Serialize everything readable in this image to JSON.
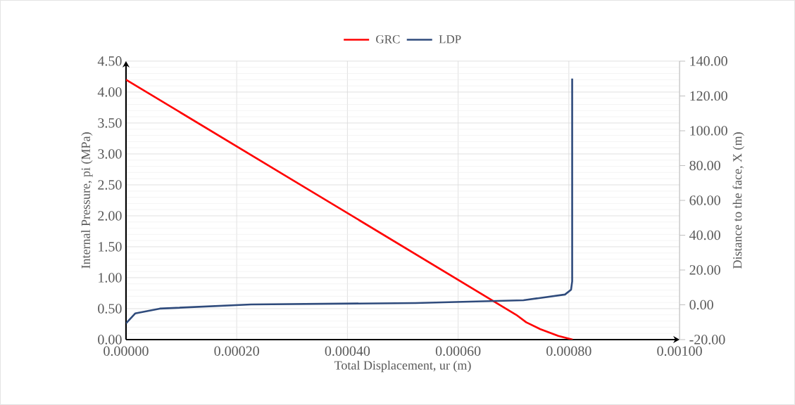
{
  "chart_data": {
    "type": "line",
    "xlabel": "Total Displacement, ur (m)",
    "ylabel": "Internal Pressure, pi (MPa)",
    "y2label": "Distance to the face, X (m)",
    "series": [
      {
        "name": "GRC",
        "color": "#ff0000",
        "x": [
          0,
          0.000705,
          0.000723,
          0.000748,
          0.000781,
          0.000807
        ],
        "values": [
          4.2,
          0.4,
          0.28,
          0.17,
          0.06,
          0
        ]
      },
      {
        "name": "LDP",
        "color": "#2f4b7c",
        "axis": "y2",
        "x": [
          0,
          1.65e-05,
          6.1e-05,
          0.000226,
          0.000523,
          0.000718,
          0.000793,
          0.000804,
          0.000806,
          0.000806
        ],
        "values": [
          -10.7,
          -5.0,
          -2.2,
          0.2,
          1.0,
          2.6,
          5.9,
          8.7,
          13.5,
          130
        ]
      }
    ],
    "xlim": [
      0,
      0.001
    ],
    "xticks": [
      {
        "value": 0,
        "label": "0.00000"
      },
      {
        "value": 0.0002,
        "label": "0.00020"
      },
      {
        "value": 0.0004,
        "label": "0.00040"
      },
      {
        "value": 0.0006,
        "label": "0.00060"
      },
      {
        "value": 0.0008,
        "label": "0.00080"
      },
      {
        "value": 0.001,
        "label": "0.00100"
      }
    ],
    "ylim": [
      0,
      4.5
    ],
    "yticks": [
      {
        "value": 0,
        "label": "0.00"
      },
      {
        "value": 0.5,
        "label": "0.50"
      },
      {
        "value": 1,
        "label": "1.00"
      },
      {
        "value": 1.5,
        "label": "1.50"
      },
      {
        "value": 2,
        "label": "2.00"
      },
      {
        "value": 2.5,
        "label": "2.50"
      },
      {
        "value": 3,
        "label": "3.00"
      },
      {
        "value": 3.5,
        "label": "3.50"
      },
      {
        "value": 4,
        "label": "4.00"
      },
      {
        "value": 4.5,
        "label": "4.50"
      }
    ],
    "y2lim": [
      -20,
      140
    ],
    "y2ticks": [
      {
        "value": -20,
        "label": "-20.00"
      },
      {
        "value": 0,
        "label": "0.00"
      },
      {
        "value": 20,
        "label": "20.00"
      },
      {
        "value": 40,
        "label": "40.00"
      },
      {
        "value": 60,
        "label": "60.00"
      },
      {
        "value": 80,
        "label": "80.00"
      },
      {
        "value": 100,
        "label": "100.00"
      },
      {
        "value": 120,
        "label": "120.00"
      },
      {
        "value": 140,
        "label": "140.00"
      }
    ],
    "grid": true,
    "legend": "top"
  }
}
